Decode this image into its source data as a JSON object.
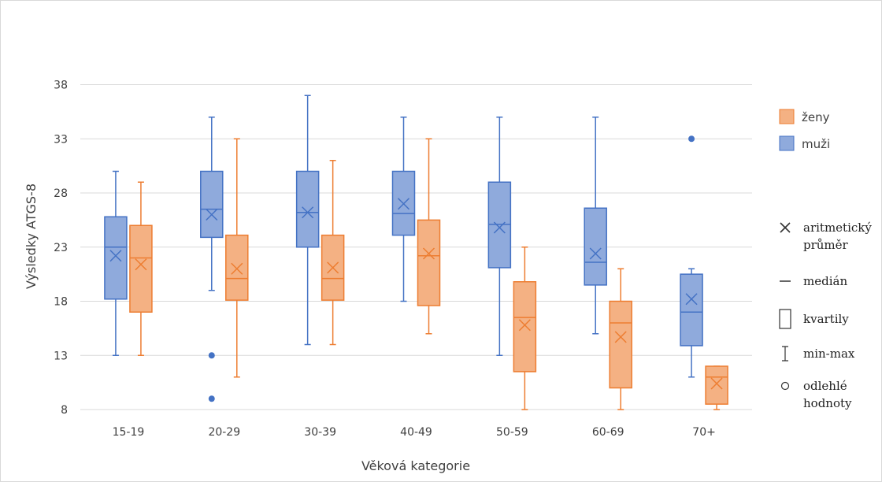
{
  "chart_data": {
    "type": "boxplot",
    "title": "",
    "xlabel": "Věková kategorie",
    "ylabel": "Výsledky ATGS-8",
    "ylim": [
      8,
      40
    ],
    "yticks": [
      8,
      13,
      18,
      23,
      28,
      33,
      38
    ],
    "grid": true,
    "legend_position": "right",
    "categories": [
      "15-19",
      "20-29",
      "30-39",
      "40-49",
      "50-59",
      "60-69",
      "70+"
    ],
    "series": [
      {
        "name": "muži",
        "color": "#8FAADC",
        "edge_color": "#4472C4",
        "stats": [
          {
            "min": 13,
            "q1": 18.2,
            "median": 23,
            "q3": 25.8,
            "max": 30,
            "mean": 22.2,
            "outliers": []
          },
          {
            "min": 19,
            "q1": 23.9,
            "median": 26.5,
            "q3": 30,
            "max": 35,
            "mean": 26,
            "outliers": [
              13,
              9
            ]
          },
          {
            "min": 14,
            "q1": 23,
            "median": 26.2,
            "q3": 30,
            "max": 37,
            "mean": 26.2,
            "outliers": []
          },
          {
            "min": 18,
            "q1": 24.1,
            "median": 26.1,
            "q3": 30,
            "max": 35,
            "mean": 27,
            "outliers": []
          },
          {
            "min": 13,
            "q1": 21.1,
            "median": 25.1,
            "q3": 29,
            "max": 35,
            "mean": 24.8,
            "outliers": []
          },
          {
            "min": 15,
            "q1": 19.5,
            "median": 21.6,
            "q3": 26.6,
            "max": 35,
            "mean": 22.4,
            "outliers": []
          },
          {
            "min": 11,
            "q1": 13.9,
            "median": 17,
            "q3": 20.5,
            "max": 21,
            "mean": 18.2,
            "outliers": [
              33
            ]
          }
        ]
      },
      {
        "name": "ženy",
        "color": "#F4B183",
        "edge_color": "#ED7D31",
        "stats": [
          {
            "min": 13,
            "q1": 17,
            "median": 22,
            "q3": 25,
            "max": 29,
            "mean": 21.4,
            "outliers": []
          },
          {
            "min": 11,
            "q1": 18.1,
            "median": 20.1,
            "q3": 24.1,
            "max": 33,
            "mean": 21,
            "outliers": []
          },
          {
            "min": 14,
            "q1": 18.1,
            "median": 20.1,
            "q3": 24.1,
            "max": 31,
            "mean": 21.1,
            "outliers": []
          },
          {
            "min": 15,
            "q1": 17.6,
            "median": 22.2,
            "q3": 25.5,
            "max": 33,
            "mean": 22.4,
            "outliers": []
          },
          {
            "min": 8,
            "q1": 11.5,
            "median": 16.5,
            "q3": 19.8,
            "max": 23,
            "mean": 15.8,
            "outliers": []
          },
          {
            "min": 8,
            "q1": 10,
            "median": 16,
            "q3": 18,
            "max": 21,
            "mean": 14.7,
            "outliers": []
          },
          {
            "min": 8,
            "q1": 8.5,
            "median": 11,
            "q3": 12,
            "max": 12,
            "mean": 10.4,
            "outliers": []
          }
        ]
      }
    ],
    "legend": [
      {
        "label": "ženy",
        "color": "#F4B183",
        "edge_color": "#ED7D31"
      },
      {
        "label": "muži",
        "color": "#8FAADC",
        "edge_color": "#4472C4"
      }
    ],
    "key": [
      {
        "symbol": "cross-icon",
        "lines": [
          "aritmetický",
          "průměr"
        ]
      },
      {
        "symbol": "dash-icon",
        "lines": [
          "medián"
        ]
      },
      {
        "symbol": "box-icon",
        "lines": [
          "kvartily"
        ]
      },
      {
        "symbol": "whisker-icon",
        "lines": [
          "min-max"
        ]
      },
      {
        "symbol": "circle-icon",
        "lines": [
          "odlehlé",
          "hodnoty"
        ]
      }
    ]
  }
}
